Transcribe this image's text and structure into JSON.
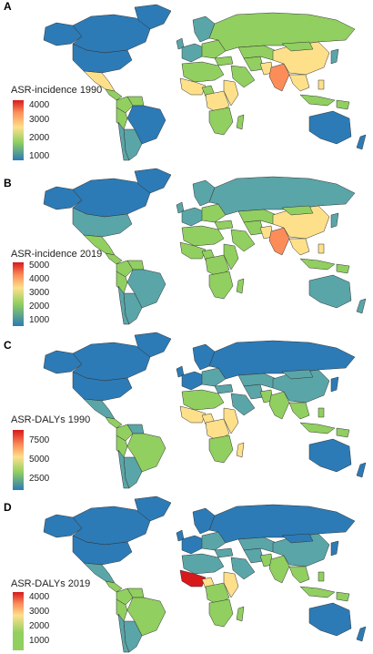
{
  "colors": {
    "ocean": "#ffffff",
    "low": "#2c7bb6",
    "lowmid": "#5aa5a8",
    "mid": "#91cf60",
    "midhigh": "#fee08b",
    "high": "#fc8d59",
    "top": "#d7191c",
    "border": "#333333"
  },
  "panels": [
    {
      "label": "A",
      "legend_title": "ASR-incidence 1990",
      "ticks": [
        "4000",
        "3000",
        "2000",
        "1000"
      ],
      "scheme": "incidence1990"
    },
    {
      "label": "B",
      "legend_title": "ASR-incidence 2019",
      "ticks": [
        "5000",
        "4000",
        "3000",
        "2000",
        "1000"
      ],
      "scheme": "incidence2019"
    },
    {
      "label": "C",
      "legend_title": "ASR-DALYs 1990",
      "ticks": [
        "7500",
        "5000",
        "2500"
      ],
      "scheme": "dalys1990"
    },
    {
      "label": "D",
      "legend_title": "ASR-DALYs 2019",
      "ticks": [
        "4000",
        "3000",
        "2000",
        "1000"
      ],
      "scheme": "dalys2019"
    }
  ]
}
